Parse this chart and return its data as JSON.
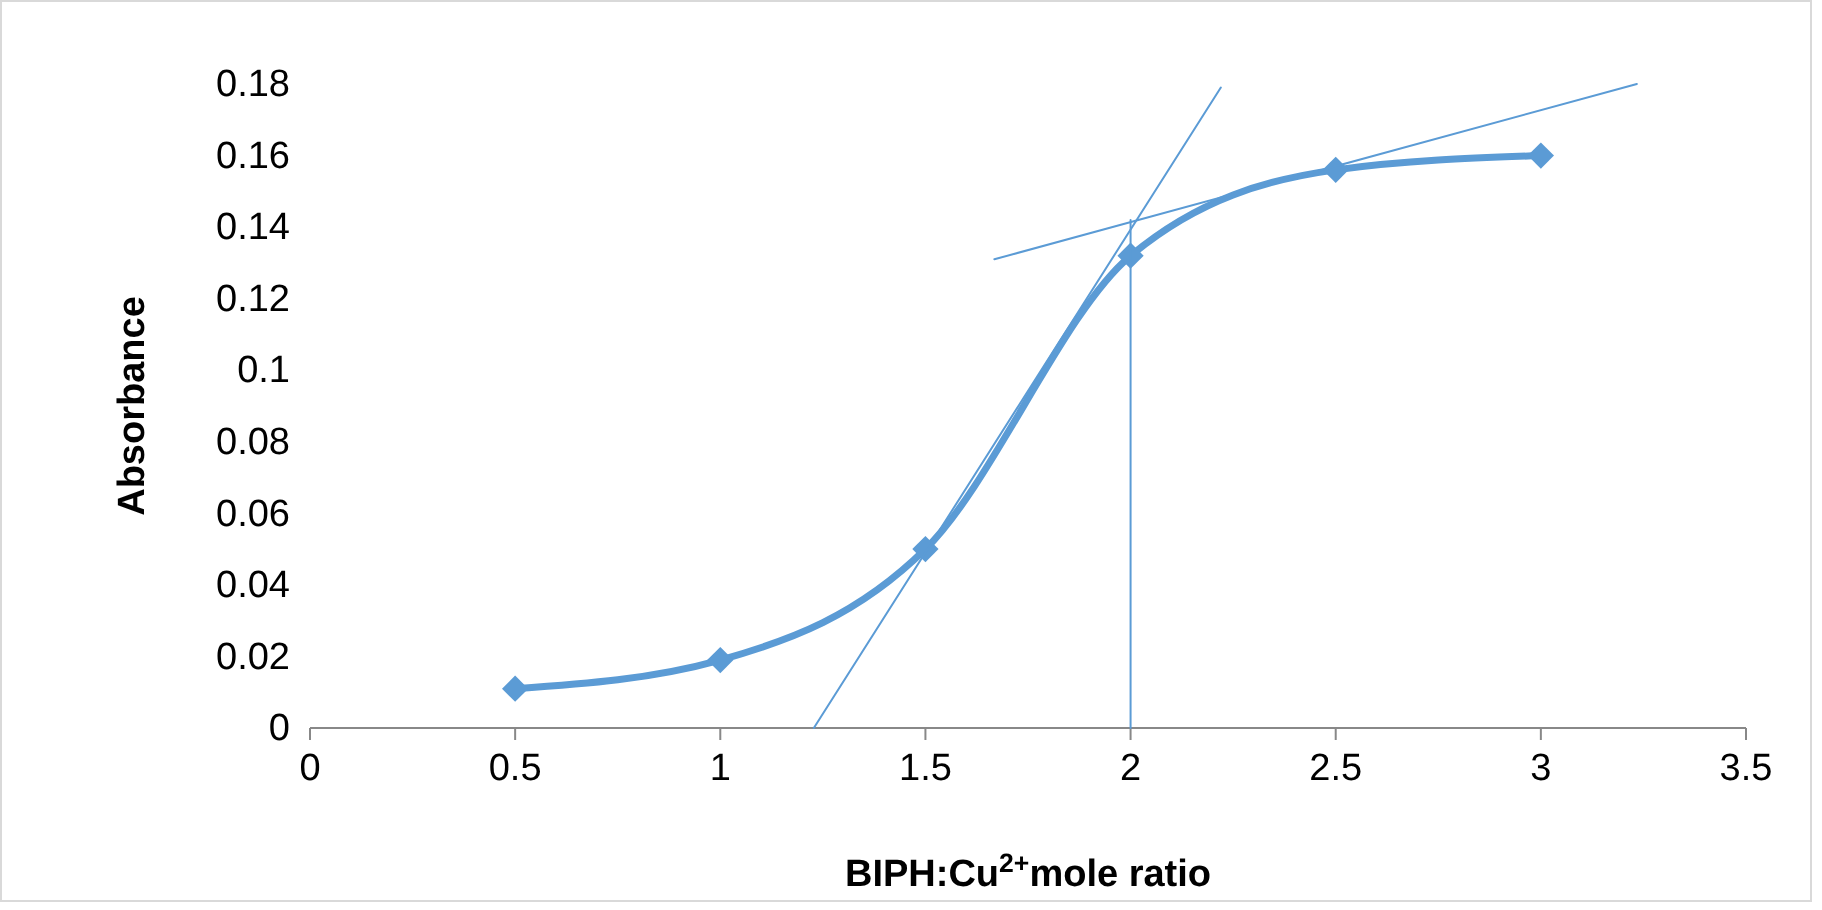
{
  "chart_data": {
    "type": "line",
    "xlabel": "BIPH:Cu$^{2+}$mole ratio",
    "ylabel": "Absorbance",
    "xlim": [
      0,
      3.5
    ],
    "xticks": [
      0,
      0.5,
      1,
      1.5,
      2,
      2.5,
      3,
      3.5
    ],
    "ylim": [
      0,
      0.18
    ],
    "yticks": [
      0,
      0.02,
      0.04,
      0.06,
      0.08,
      0.1,
      0.12,
      0.14,
      0.16,
      0.18
    ],
    "grid": false,
    "series": [
      {
        "color": "#5b9bd5",
        "marker": "diamond",
        "x": [
          0.5,
          1,
          1.5,
          2,
          2.5,
          3
        ],
        "values": [
          0.011,
          0.019,
          0.05,
          0.132,
          0.156,
          0.16
        ]
      },
      {
        "color": "#5b9bd5",
        "marker": "none",
        "x": [
          1.228,
          2.22
        ],
        "values": [
          0,
          0.179
        ]
      },
      {
        "color": "#5b9bd5",
        "marker": "none",
        "x": [
          1.668,
          3.234
        ],
        "values": [
          0.131,
          0.18
        ]
      },
      {
        "color": "#5b9bd5",
        "marker": "none",
        "x": [
          2,
          2
        ],
        "values": [
          0,
          0.142
        ]
      }
    ]
  }
}
